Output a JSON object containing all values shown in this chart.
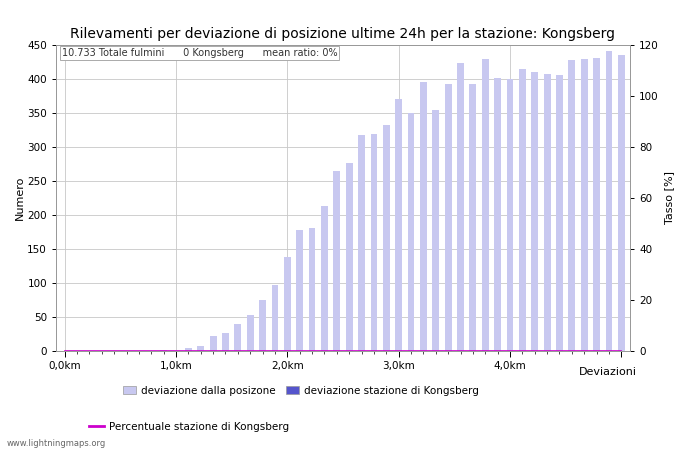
{
  "title": "Rilevamenti per deviazione di posizione ultime 24h per la stazione: Kongsberg",
  "subtitle": "10.733 Totale fulmini      0 Kongsberg      mean ratio: 0%",
  "xlabel": "Deviazioni",
  "ylabel_left": "Numero",
  "ylabel_right": "Tasso [%]",
  "watermark": "www.lightningmaps.org",
  "bar_values_total": [
    0,
    0,
    0,
    0,
    0,
    0,
    0,
    0,
    1,
    0,
    5,
    8,
    22,
    27,
    40,
    53,
    75,
    97,
    138,
    178,
    181,
    213,
    264,
    277,
    318,
    319,
    332,
    371,
    350,
    395,
    354,
    393,
    424,
    393,
    430,
    401,
    400,
    415,
    411,
    408,
    406,
    428,
    430,
    431,
    441,
    435
  ],
  "bar_values_station": [
    0,
    0,
    0,
    0,
    0,
    0,
    0,
    0,
    0,
    0,
    0,
    0,
    0,
    0,
    0,
    0,
    0,
    0,
    0,
    0,
    0,
    0,
    0,
    0,
    0,
    0,
    0,
    0,
    0,
    0,
    0,
    0,
    0,
    0,
    0,
    0,
    0,
    0,
    0,
    0,
    0,
    0,
    0,
    0,
    0,
    0
  ],
  "ylim_left": [
    0,
    450
  ],
  "ylim_right": [
    0,
    120
  ],
  "yticks_left": [
    0,
    50,
    100,
    150,
    200,
    250,
    300,
    350,
    400,
    450
  ],
  "yticks_right": [
    0,
    20,
    40,
    60,
    80,
    100,
    120
  ],
  "bar_color_total": "#c8c8f0",
  "bar_color_station": "#5555cc",
  "line_color": "#cc00cc",
  "grid_color": "#c8c8c8",
  "bg_color": "#ffffff",
  "title_fontsize": 10,
  "axis_fontsize": 8,
  "tick_fontsize": 7.5,
  "legend_label_total": "deviazione dalla posizone",
  "legend_label_station": "deviazione stazione di Kongsberg",
  "legend_label_line": "Percentuale stazione di Kongsberg"
}
